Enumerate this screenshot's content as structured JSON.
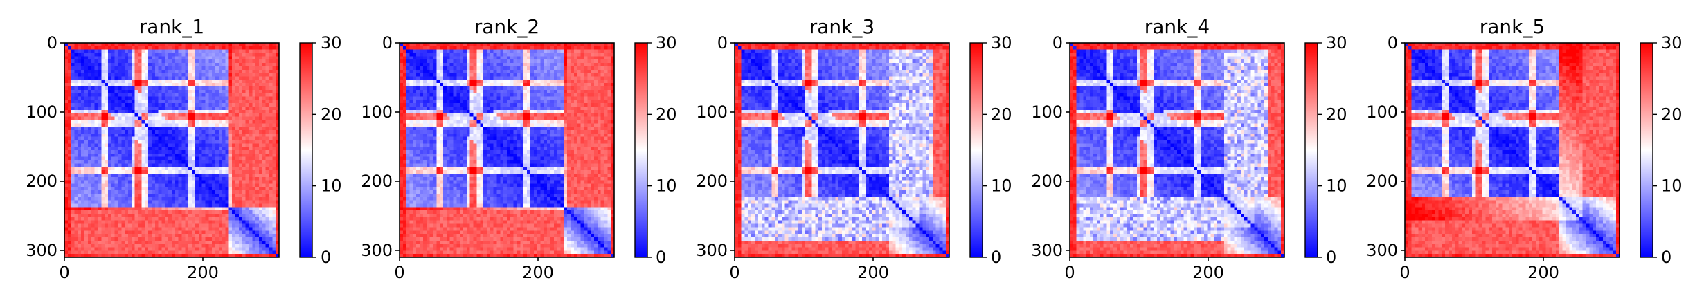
{
  "chart_data": [
    {
      "type": "heatmap",
      "title": "rank_1",
      "x_ticks": [
        0,
        200
      ],
      "y_ticks": [
        0,
        100,
        200,
        300
      ],
      "xlim": [
        0,
        310
      ],
      "ylim": [
        310,
        0
      ],
      "colorbar": {
        "ticks": [
          0,
          10,
          20,
          30
        ],
        "range": [
          0,
          30
        ],
        "colormap": [
          "#0000ff",
          "#ffffff",
          "#ff0000"
        ]
      },
      "grid": false
    },
    {
      "type": "heatmap",
      "title": "rank_2",
      "x_ticks": [
        0,
        200
      ],
      "y_ticks": [
        0,
        100,
        200,
        300
      ],
      "xlim": [
        0,
        310
      ],
      "ylim": [
        310,
        0
      ],
      "colorbar": {
        "ticks": [
          0,
          10,
          20,
          30
        ],
        "range": [
          0,
          30
        ],
        "colormap": [
          "#0000ff",
          "#ffffff",
          "#ff0000"
        ]
      },
      "grid": false
    },
    {
      "type": "heatmap",
      "title": "rank_3",
      "x_ticks": [
        0,
        200
      ],
      "y_ticks": [
        0,
        100,
        200,
        300
      ],
      "xlim": [
        0,
        310
      ],
      "ylim": [
        310,
        0
      ],
      "colorbar": {
        "ticks": [
          0,
          10,
          20,
          30
        ],
        "range": [
          0,
          30
        ],
        "colormap": [
          "#0000ff",
          "#ffffff",
          "#ff0000"
        ]
      },
      "grid": false
    },
    {
      "type": "heatmap",
      "title": "rank_4",
      "x_ticks": [
        0,
        200
      ],
      "y_ticks": [
        0,
        100,
        200,
        300
      ],
      "xlim": [
        0,
        310
      ],
      "ylim": [
        310,
        0
      ],
      "colorbar": {
        "ticks": [
          0,
          10,
          20,
          30
        ],
        "range": [
          0,
          30
        ],
        "colormap": [
          "#0000ff",
          "#ffffff",
          "#ff0000"
        ]
      },
      "grid": false
    },
    {
      "type": "heatmap",
      "title": "rank_5",
      "x_ticks": [
        0,
        200
      ],
      "y_ticks": [
        0,
        100,
        200,
        300
      ],
      "xlim": [
        0,
        310
      ],
      "ylim": [
        310,
        0
      ],
      "colorbar": {
        "ticks": [
          0,
          10,
          20,
          30
        ],
        "range": [
          0,
          30
        ],
        "colormap": [
          "#0000ff",
          "#ffffff",
          "#ff0000"
        ]
      },
      "grid": false
    }
  ]
}
